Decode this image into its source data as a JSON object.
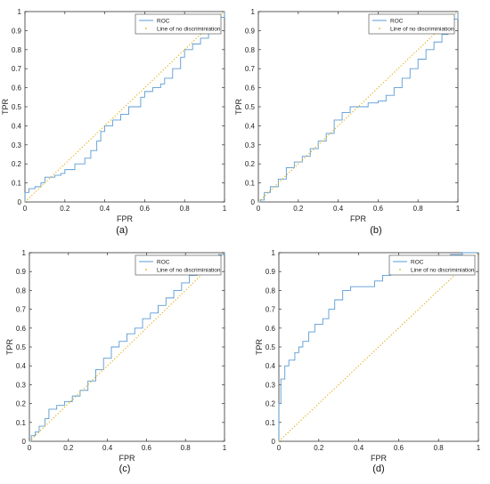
{
  "chart_data": [
    {
      "type": "line",
      "caption": "(a)",
      "xlabel": "FPR",
      "ylabel": "TPR",
      "xlim": [
        0,
        1
      ],
      "ylim": [
        0,
        1
      ],
      "xticks": [
        "0",
        "0.2",
        "0.4",
        "0.6",
        "0.8",
        "1"
      ],
      "yticks": [
        "0",
        "0.1",
        "0.2",
        "0.3",
        "0.4",
        "0.5",
        "0.6",
        "0.7",
        "0.8",
        "0.9",
        "1"
      ],
      "legend_position": "top-right",
      "series": [
        {
          "name": "ROC",
          "color": "#5b9bd5",
          "points": [
            [
              0,
              0
            ],
            [
              0,
              0.05
            ],
            [
              0.02,
              0.07
            ],
            [
              0.05,
              0.08
            ],
            [
              0.08,
              0.1
            ],
            [
              0.1,
              0.13
            ],
            [
              0.15,
              0.14
            ],
            [
              0.18,
              0.15
            ],
            [
              0.2,
              0.17
            ],
            [
              0.25,
              0.2
            ],
            [
              0.3,
              0.23
            ],
            [
              0.33,
              0.27
            ],
            [
              0.36,
              0.32
            ],
            [
              0.38,
              0.37
            ],
            [
              0.4,
              0.4
            ],
            [
              0.44,
              0.43
            ],
            [
              0.48,
              0.46
            ],
            [
              0.52,
              0.5
            ],
            [
              0.56,
              0.5
            ],
            [
              0.58,
              0.55
            ],
            [
              0.6,
              0.58
            ],
            [
              0.64,
              0.6
            ],
            [
              0.68,
              0.62
            ],
            [
              0.7,
              0.65
            ],
            [
              0.74,
              0.7
            ],
            [
              0.78,
              0.76
            ],
            [
              0.8,
              0.8
            ],
            [
              0.84,
              0.83
            ],
            [
              0.88,
              0.86
            ],
            [
              0.92,
              0.9
            ],
            [
              0.96,
              0.94
            ],
            [
              0.98,
              0.97
            ],
            [
              1,
              1
            ]
          ]
        },
        {
          "name": "Line of no discriminiation",
          "color": "#e0b21a",
          "dotted": true,
          "points": [
            [
              0,
              0
            ],
            [
              1,
              1
            ]
          ]
        }
      ]
    },
    {
      "type": "line",
      "caption": "(b)",
      "xlabel": "FPR",
      "ylabel": "TPR",
      "xlim": [
        0,
        1
      ],
      "ylim": [
        0,
        1
      ],
      "xticks": [
        "0",
        "0.2",
        "0.4",
        "0.6",
        "0.8",
        "1"
      ],
      "yticks": [
        "0",
        "0.1",
        "0.2",
        "0.3",
        "0.4",
        "0.5",
        "0.6",
        "0.7",
        "0.8",
        "0.9",
        "1"
      ],
      "legend_position": "top-right",
      "series": [
        {
          "name": "ROC",
          "color": "#5b9bd5",
          "points": [
            [
              0,
              0
            ],
            [
              0.01,
              0.01
            ],
            [
              0.03,
              0.05
            ],
            [
              0.06,
              0.08
            ],
            [
              0.1,
              0.12
            ],
            [
              0.14,
              0.18
            ],
            [
              0.18,
              0.21
            ],
            [
              0.22,
              0.24
            ],
            [
              0.26,
              0.28
            ],
            [
              0.3,
              0.32
            ],
            [
              0.34,
              0.36
            ],
            [
              0.38,
              0.43
            ],
            [
              0.42,
              0.47
            ],
            [
              0.46,
              0.5
            ],
            [
              0.5,
              0.5
            ],
            [
              0.55,
              0.52
            ],
            [
              0.6,
              0.53
            ],
            [
              0.64,
              0.56
            ],
            [
              0.68,
              0.6
            ],
            [
              0.72,
              0.65
            ],
            [
              0.76,
              0.7
            ],
            [
              0.8,
              0.75
            ],
            [
              0.84,
              0.8
            ],
            [
              0.88,
              0.84
            ],
            [
              0.92,
              0.88
            ],
            [
              0.95,
              0.92
            ],
            [
              0.98,
              0.96
            ],
            [
              1,
              1
            ]
          ]
        },
        {
          "name": "Line of no discriminiation",
          "color": "#e0b21a",
          "dotted": true,
          "points": [
            [
              0,
              0
            ],
            [
              1,
              1
            ]
          ]
        }
      ]
    },
    {
      "type": "line",
      "caption": "(c)",
      "xlabel": "FPR",
      "ylabel": "TPR",
      "xlim": [
        0,
        1
      ],
      "ylim": [
        0,
        1
      ],
      "xticks": [
        "0",
        "0.2",
        "0.4",
        "0.6",
        "0.8",
        "1"
      ],
      "yticks": [
        "0",
        "0.1",
        "0.2",
        "0.3",
        "0.4",
        "0.5",
        "0.6",
        "0.7",
        "0.8",
        "0.9",
        "1"
      ],
      "legend_position": "top-right",
      "series": [
        {
          "name": "ROC",
          "color": "#5b9bd5",
          "points": [
            [
              0,
              0
            ],
            [
              0.01,
              0.03
            ],
            [
              0.03,
              0.05
            ],
            [
              0.05,
              0.08
            ],
            [
              0.08,
              0.12
            ],
            [
              0.1,
              0.17
            ],
            [
              0.14,
              0.19
            ],
            [
              0.18,
              0.21
            ],
            [
              0.22,
              0.24
            ],
            [
              0.26,
              0.27
            ],
            [
              0.3,
              0.32
            ],
            [
              0.34,
              0.38
            ],
            [
              0.38,
              0.44
            ],
            [
              0.42,
              0.5
            ],
            [
              0.46,
              0.53
            ],
            [
              0.5,
              0.57
            ],
            [
              0.54,
              0.6
            ],
            [
              0.58,
              0.65
            ],
            [
              0.62,
              0.68
            ],
            [
              0.66,
              0.72
            ],
            [
              0.7,
              0.76
            ],
            [
              0.74,
              0.8
            ],
            [
              0.78,
              0.84
            ],
            [
              0.82,
              0.88
            ],
            [
              0.86,
              0.92
            ],
            [
              0.9,
              0.95
            ],
            [
              0.94,
              0.97
            ],
            [
              0.97,
              0.99
            ],
            [
              1,
              1
            ]
          ]
        },
        {
          "name": "Line of no discriminiation",
          "color": "#e0b21a",
          "dotted": true,
          "points": [
            [
              0,
              0
            ],
            [
              1,
              1
            ]
          ]
        }
      ]
    },
    {
      "type": "line",
      "caption": "(d)",
      "xlabel": "FPR",
      "ylabel": "TPR",
      "xlim": [
        0,
        1
      ],
      "ylim": [
        0,
        1
      ],
      "xticks": [
        "0",
        "0.2",
        "0.4",
        "0.6",
        "0.8",
        "1"
      ],
      "yticks": [
        "0",
        "0.1",
        "0.2",
        "0.3",
        "0.4",
        "0.5",
        "0.6",
        "0.7",
        "0.8",
        "0.9",
        "1"
      ],
      "legend_position": "top-right",
      "series": [
        {
          "name": "ROC",
          "color": "#5b9bd5",
          "points": [
            [
              0,
              0
            ],
            [
              0,
              0.2
            ],
            [
              0.01,
              0.33
            ],
            [
              0.03,
              0.4
            ],
            [
              0.05,
              0.43
            ],
            [
              0.08,
              0.47
            ],
            [
              0.1,
              0.5
            ],
            [
              0.12,
              0.53
            ],
            [
              0.15,
              0.58
            ],
            [
              0.18,
              0.62
            ],
            [
              0.22,
              0.65
            ],
            [
              0.25,
              0.7
            ],
            [
              0.28,
              0.75
            ],
            [
              0.32,
              0.8
            ],
            [
              0.36,
              0.82
            ],
            [
              0.4,
              0.82
            ],
            [
              0.44,
              0.82
            ],
            [
              0.48,
              0.85
            ],
            [
              0.52,
              0.88
            ],
            [
              0.56,
              0.9
            ],
            [
              0.6,
              0.92
            ],
            [
              0.65,
              0.94
            ],
            [
              0.7,
              0.95
            ],
            [
              0.75,
              0.97
            ],
            [
              0.8,
              0.98
            ],
            [
              0.86,
              0.99
            ],
            [
              0.92,
              1
            ],
            [
              1,
              1
            ]
          ]
        },
        {
          "name": "Line of no discriminiation",
          "color": "#e0b21a",
          "dotted": true,
          "points": [
            [
              0,
              0
            ],
            [
              1,
              1
            ]
          ]
        }
      ]
    }
  ]
}
